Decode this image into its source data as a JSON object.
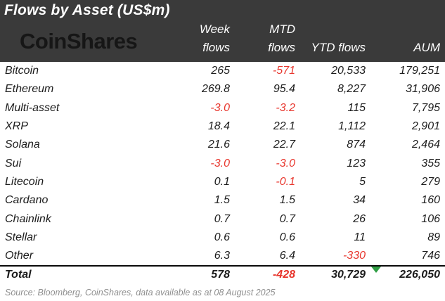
{
  "title": "Flows by Asset (US$m)",
  "logo": "CoinShares",
  "table": {
    "headers": {
      "week_line1": "Week",
      "week_line2": "flows",
      "mtd_line1": "MTD",
      "mtd_line2": "flows",
      "ytd": "YTD flows",
      "aum": "AUM"
    },
    "rows": [
      {
        "asset": "Bitcoin",
        "week": "265",
        "mtd": "-571",
        "ytd": "20,533",
        "aum": "179,251"
      },
      {
        "asset": "Ethereum",
        "week": "269.8",
        "mtd": "95.4",
        "ytd": "8,227",
        "aum": "31,906"
      },
      {
        "asset": "Multi-asset",
        "week": "-3.0",
        "mtd": "-3.2",
        "ytd": "115",
        "aum": "7,795"
      },
      {
        "asset": "XRP",
        "week": "18.4",
        "mtd": "22.1",
        "ytd": "1,112",
        "aum": "2,901"
      },
      {
        "asset": "Solana",
        "week": "21.6",
        "mtd": "22.7",
        "ytd": "874",
        "aum": "2,464"
      },
      {
        "asset": "Sui",
        "week": "-3.0",
        "mtd": "-3.0",
        "ytd": "123",
        "aum": "355"
      },
      {
        "asset": "Litecoin",
        "week": "0.1",
        "mtd": "-0.1",
        "ytd": "5",
        "aum": "279"
      },
      {
        "asset": "Cardano",
        "week": "1.5",
        "mtd": "1.5",
        "ytd": "34",
        "aum": "160"
      },
      {
        "asset": "Chainlink",
        "week": "0.7",
        "mtd": "0.7",
        "ytd": "26",
        "aum": "106"
      },
      {
        "asset": "Stellar",
        "week": "0.6",
        "mtd": "0.6",
        "ytd": "11",
        "aum": "89"
      },
      {
        "asset": "Other",
        "week": "6.3",
        "mtd": "6.4",
        "ytd": "-330",
        "aum": "746"
      }
    ],
    "total": {
      "asset": "Total",
      "week": "578",
      "mtd": "-428",
      "ytd": "30,729",
      "aum": "226,050"
    }
  },
  "source": "Source: Bloomberg, CoinShares, data available as at 08 August 2025",
  "colors": {
    "header_bg": "#3a3a3a",
    "negative_red": "#e8362d",
    "marker_green": "#2f9e44",
    "source_gray": "#8f8f8f",
    "body_text": "#1c1c1c"
  }
}
